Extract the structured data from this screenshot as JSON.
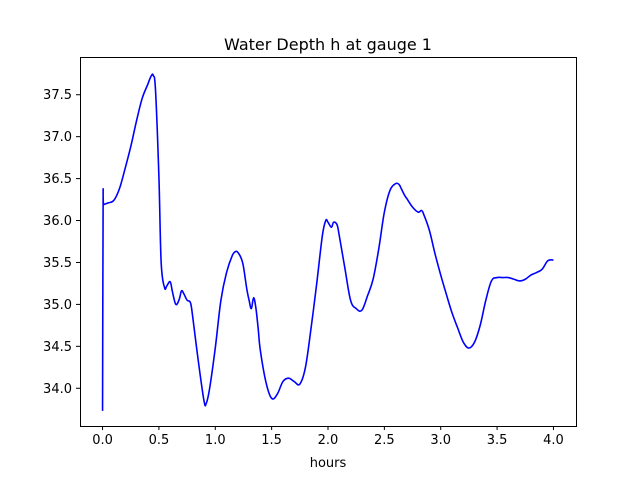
{
  "chart_data": {
    "type": "line",
    "title": "Water Depth h at gauge 1",
    "xlabel": "hours",
    "ylabel": "",
    "xlim": [
      -0.2,
      4.2
    ],
    "ylim": [
      33.55,
      37.95
    ],
    "xticks": [
      "0.0",
      "0.5",
      "1.0",
      "1.5",
      "2.0",
      "2.5",
      "3.0",
      "3.5",
      "4.0"
    ],
    "yticks": [
      "34.0",
      "34.5",
      "35.0",
      "35.5",
      "36.0",
      "36.5",
      "37.0",
      "37.5"
    ],
    "grid": false,
    "line_color": "#0000ff",
    "series": [
      {
        "x": [
          0.0,
          0.005,
          0.01,
          0.05,
          0.1,
          0.15,
          0.2,
          0.25,
          0.3,
          0.35,
          0.4,
          0.43,
          0.45,
          0.47,
          0.5,
          0.52,
          0.55,
          0.57,
          0.6,
          0.62,
          0.65,
          0.68,
          0.7,
          0.72,
          0.75,
          0.78,
          0.8,
          0.85,
          0.9,
          0.92,
          0.95,
          1.0,
          1.05,
          1.1,
          1.15,
          1.18,
          1.2,
          1.23,
          1.25,
          1.28,
          1.3,
          1.32,
          1.34,
          1.36,
          1.38,
          1.4,
          1.45,
          1.5,
          1.55,
          1.6,
          1.65,
          1.7,
          1.75,
          1.8,
          1.85,
          1.9,
          1.95,
          1.98,
          2.0,
          2.03,
          2.05,
          2.08,
          2.1,
          2.15,
          2.2,
          2.25,
          2.3,
          2.35,
          2.4,
          2.45,
          2.5,
          2.55,
          2.6,
          2.63,
          2.65,
          2.68,
          2.7,
          2.75,
          2.8,
          2.83,
          2.85,
          2.9,
          2.95,
          3.0,
          3.05,
          3.1,
          3.15,
          3.2,
          3.25,
          3.3,
          3.35,
          3.4,
          3.45,
          3.5,
          3.55,
          3.6,
          3.65,
          3.7,
          3.75,
          3.8,
          3.85,
          3.9,
          3.95,
          4.0
        ],
        "values": [
          33.73,
          36.18,
          36.19,
          36.21,
          36.24,
          36.38,
          36.62,
          36.88,
          37.18,
          37.45,
          37.62,
          37.72,
          37.73,
          37.55,
          36.52,
          35.5,
          35.2,
          35.22,
          35.27,
          35.15,
          35.0,
          35.06,
          35.16,
          35.13,
          35.05,
          35.02,
          34.85,
          34.32,
          33.85,
          33.82,
          34.0,
          34.48,
          35.05,
          35.38,
          35.58,
          35.63,
          35.62,
          35.55,
          35.45,
          35.18,
          35.05,
          34.95,
          35.08,
          34.96,
          34.72,
          34.45,
          34.07,
          33.88,
          33.93,
          34.08,
          34.12,
          34.08,
          34.05,
          34.25,
          34.72,
          35.25,
          35.82,
          36.0,
          35.98,
          35.92,
          35.98,
          35.95,
          35.82,
          35.43,
          35.05,
          34.95,
          34.93,
          35.1,
          35.3,
          35.66,
          36.1,
          36.36,
          36.44,
          36.43,
          36.38,
          36.3,
          36.26,
          36.16,
          36.1,
          36.12,
          36.07,
          35.88,
          35.6,
          35.35,
          35.12,
          34.9,
          34.72,
          34.55,
          34.48,
          34.55,
          34.75,
          35.05,
          35.28,
          35.32,
          35.32,
          35.32,
          35.3,
          35.28,
          35.3,
          35.35,
          35.38,
          35.42,
          35.52,
          35.53
        ]
      }
    ]
  }
}
